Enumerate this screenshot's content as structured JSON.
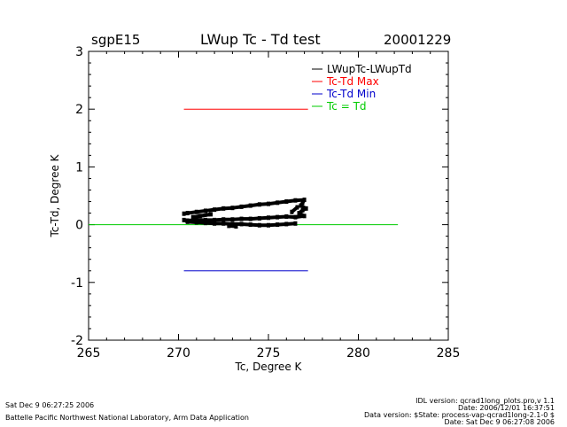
{
  "header": {
    "site": "sgpE15",
    "title": "LWup Tc - Td test",
    "date": "20001229"
  },
  "footer": {
    "left_line1": "Sat Dec  9 06:27:25 2006",
    "left_line2": "Battelle Pacific Northwest National Laboratory, Arm Data Application",
    "right_line1": "IDL version: qcrad1long_plots.pro,v 1.1",
    "right_line2": "Date: 2006/12/01 16:37:51",
    "right_line3": "Data version: $State: process-vap-qcrad1long-2.1-0 $",
    "right_line4": "Date: Sat Dec  9 06:27:08 2006"
  },
  "colors": {
    "data": "#000000",
    "max": "#ff0000",
    "min": "#0000cc",
    "equal": "#00cc00"
  },
  "chart_data": {
    "type": "scatter",
    "title": "LWup Tc - Td test",
    "xlabel": "Tc, Degree K",
    "ylabel": "Tc-Td, Degree K",
    "xlim": [
      265,
      285
    ],
    "ylim": [
      -2,
      3
    ],
    "xticks": [
      "265",
      "270",
      "275",
      "280",
      "285"
    ],
    "yticks": [
      "-2",
      "-1",
      "0",
      "1",
      "2",
      "3"
    ],
    "legend_position": "top-right",
    "legend": [
      {
        "label": "LWupTc-LWupTd",
        "color": "#000000"
      },
      {
        "label": "Tc-Td Max",
        "color": "#ff0000"
      },
      {
        "label": "Tc-Td Min",
        "color": "#0000cc"
      },
      {
        "label": "Tc = Td",
        "color": "#00cc00"
      }
    ],
    "series": [
      {
        "name": "LWupTc-LWupTd",
        "color": "#000000",
        "points": [
          [
            270.3,
            0.19
          ],
          [
            270.5,
            0.2
          ],
          [
            271.0,
            0.22
          ],
          [
            271.5,
            0.24
          ],
          [
            272.0,
            0.26
          ],
          [
            272.5,
            0.28
          ],
          [
            273.0,
            0.29
          ],
          [
            273.5,
            0.31
          ],
          [
            274.0,
            0.33
          ],
          [
            274.5,
            0.35
          ],
          [
            275.0,
            0.36
          ],
          [
            275.5,
            0.38
          ],
          [
            276.0,
            0.4
          ],
          [
            276.5,
            0.42
          ],
          [
            277.0,
            0.43
          ],
          [
            276.9,
            0.38
          ],
          [
            276.8,
            0.33
          ],
          [
            277.1,
            0.28
          ],
          [
            276.9,
            0.25
          ],
          [
            276.7,
            0.2
          ],
          [
            277.0,
            0.15
          ],
          [
            276.5,
            0.13
          ],
          [
            276.0,
            0.14
          ],
          [
            275.5,
            0.13
          ],
          [
            275.0,
            0.12
          ],
          [
            274.5,
            0.11
          ],
          [
            274.0,
            0.1
          ],
          [
            273.5,
            0.1
          ],
          [
            273.0,
            0.09
          ],
          [
            272.5,
            0.09
          ],
          [
            272.0,
            0.08
          ],
          [
            271.5,
            0.08
          ],
          [
            271.0,
            0.08
          ],
          [
            270.5,
            0.07
          ],
          [
            270.3,
            0.08
          ],
          [
            270.5,
            0.05
          ],
          [
            271.0,
            0.04
          ],
          [
            271.5,
            0.03
          ],
          [
            272.0,
            0.02
          ],
          [
            272.5,
            0.02
          ],
          [
            273.0,
            0.01
          ],
          [
            273.5,
            0.01
          ],
          [
            274.0,
            0.0
          ],
          [
            274.5,
            -0.01
          ],
          [
            275.0,
            -0.01
          ],
          [
            275.5,
            0.0
          ],
          [
            276.0,
            0.01
          ],
          [
            276.5,
            0.02
          ],
          [
            276.3,
            0.22
          ],
          [
            276.6,
            0.3
          ],
          [
            272.8,
            -0.02
          ],
          [
            273.2,
            -0.03
          ],
          [
            271.2,
            0.15
          ],
          [
            271.8,
            0.18
          ],
          [
            270.8,
            0.13
          ]
        ]
      },
      {
        "name": "Tc-Td Max",
        "color": "#ff0000",
        "x": [
          270.3,
          277.2
        ],
        "y": [
          2.0,
          2.0
        ]
      },
      {
        "name": "Tc-Td Min",
        "color": "#0000cc",
        "x": [
          270.3,
          277.2
        ],
        "y": [
          -0.8,
          -0.8
        ]
      },
      {
        "name": "Tc = Td",
        "color": "#00cc00",
        "x": [
          265.0,
          282.2
        ],
        "y": [
          0.0,
          0.0
        ]
      }
    ]
  }
}
